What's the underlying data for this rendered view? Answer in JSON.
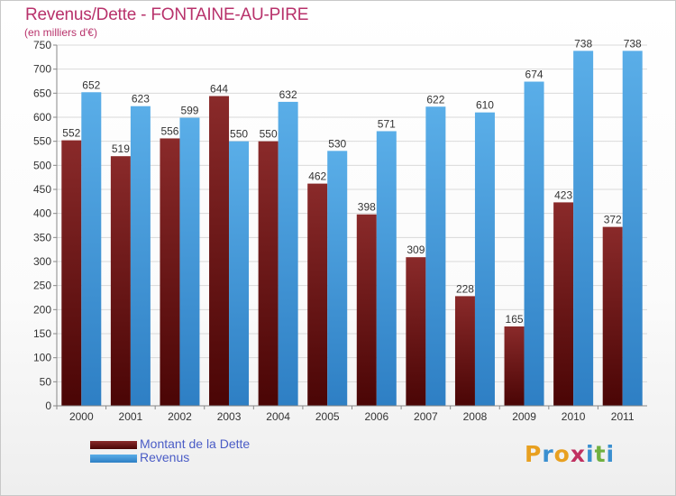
{
  "title": "Revenus/Dette - FONTAINE-AU-PIRE",
  "subtitle": "(en milliers d'€)",
  "colors": {
    "title": "#b8326b",
    "debt": "#7a1e1e",
    "revenue": "#4aa3e0",
    "legend_text": "#4a5cc6"
  },
  "chart_data": {
    "type": "bar",
    "categories": [
      "2000",
      "2001",
      "2002",
      "2003",
      "2004",
      "2005",
      "2006",
      "2007",
      "2008",
      "2009",
      "2010",
      "2011"
    ],
    "series": [
      {
        "name": "Montant de la Dette",
        "values": [
          552,
          519,
          556,
          644,
          550,
          462,
          398,
          309,
          228,
          165,
          423,
          372
        ]
      },
      {
        "name": "Revenus",
        "values": [
          652,
          623,
          599,
          550,
          632,
          530,
          571,
          622,
          610,
          674,
          738,
          738
        ]
      }
    ],
    "ylim": [
      0,
      750
    ],
    "yticks": [
      0,
      50,
      100,
      150,
      200,
      250,
      300,
      350,
      400,
      450,
      500,
      550,
      600,
      650,
      700,
      750
    ],
    "grid": true,
    "legend_position": "bottom-left"
  },
  "legend": [
    {
      "label": "Montant de la Dette",
      "color": "#7a1e1e"
    },
    {
      "label": "Revenus",
      "color": "#4aa3e0"
    }
  ],
  "logo": {
    "text": "Proxiti",
    "letters": [
      "P",
      "r",
      "o",
      "x",
      "i",
      "t",
      "i"
    ],
    "colors": [
      "#e8a020",
      "#3a8fd0",
      "#e8a020",
      "#c03060",
      "#3a8fd0",
      "#70b040",
      "#3a8fd0"
    ]
  }
}
